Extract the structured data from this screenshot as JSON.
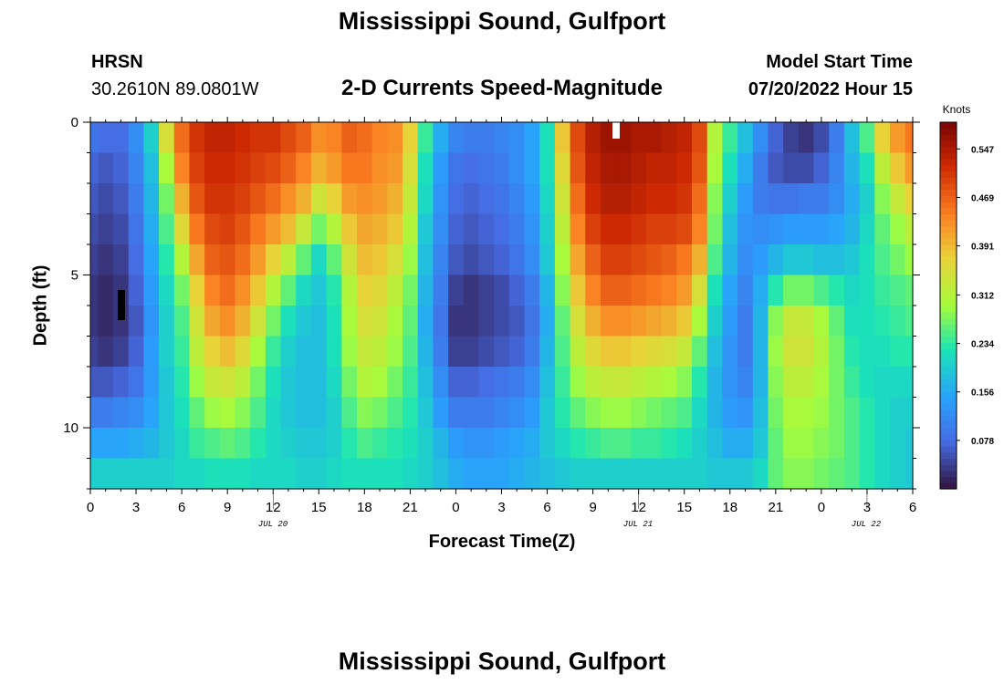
{
  "header": {
    "title": "Mississippi Sound, Gulfport",
    "station_code": "HRSN",
    "coordinates": "30.2610N  89.0801W",
    "subtitle": "2-D Currents Speed-Magnitude",
    "model_label": "Model Start Time",
    "model_time": "07/20/2022 Hour 15"
  },
  "footer": {
    "title": "Mississippi Sound, Gulfport"
  },
  "chart_data": {
    "type": "heatmap",
    "title": "2-D Currents Speed-Magnitude",
    "xlabel": "Forecast Time(Z)",
    "ylabel": "Depth (ft)",
    "x_tick_labels": [
      "0",
      "3",
      "6",
      "9",
      "12",
      "15",
      "18",
      "21",
      "0",
      "3",
      "6",
      "9",
      "12",
      "15",
      "18",
      "21",
      "0",
      "3",
      "6"
    ],
    "x_date_labels": [
      "JUL 20",
      "JUL 21",
      "JUL 22"
    ],
    "x_range_hours": [
      0,
      54
    ],
    "y_tick_labels": [
      "0",
      "5",
      "10"
    ],
    "ylim": [
      0,
      12
    ],
    "y_inverted": true,
    "colorbar": {
      "label": "Knots",
      "ticks": [
        "0.547",
        "0.469",
        "0.391",
        "0.312",
        "0.234",
        "0.156",
        "0.078"
      ],
      "range": [
        0,
        0.59
      ],
      "colormap": "turbo"
    },
    "grid": {
      "hours": [
        0,
        1,
        2,
        3,
        4,
        5,
        6,
        7,
        8,
        9,
        10,
        11,
        12,
        13,
        14,
        15,
        16,
        17,
        18,
        19,
        20,
        21,
        22,
        23,
        24,
        25,
        26,
        27,
        28,
        29,
        30,
        31,
        32,
        33,
        34,
        35,
        36,
        37,
        38,
        39,
        40,
        41,
        42,
        43,
        44,
        45,
        46,
        47,
        48,
        49,
        50,
        51,
        52,
        53,
        54
      ],
      "depth_bins_ft": [
        0.5,
        1.5,
        2.5,
        3.5,
        4.5,
        5.5,
        6.5,
        7.5,
        8.5,
        9.5,
        10.5,
        11.5
      ],
      "speed_knots": [
        [
          0.09,
          0.08,
          0.08,
          0.12,
          0.2,
          0.35,
          0.46,
          0.51,
          0.53,
          0.53,
          0.52,
          0.51,
          0.51,
          0.49,
          0.47,
          0.43,
          0.44,
          0.47,
          0.46,
          0.44,
          0.43,
          0.37,
          0.24,
          0.16,
          0.11,
          0.1,
          0.1,
          0.11,
          0.12,
          0.15,
          0.22,
          0.38,
          0.49,
          0.54,
          0.56,
          0.56,
          0.55,
          0.55,
          0.54,
          0.53,
          0.49,
          0.31,
          0.24,
          0.18,
          0.12,
          0.07,
          0.04,
          0.03,
          0.05,
          0.1,
          0.18,
          0.25,
          0.37,
          0.42,
          0.45
        ],
        [
          0.07,
          0.06,
          0.07,
          0.11,
          0.18,
          0.3,
          0.44,
          0.5,
          0.52,
          0.52,
          0.51,
          0.5,
          0.49,
          0.47,
          0.44,
          0.4,
          0.42,
          0.45,
          0.45,
          0.43,
          0.42,
          0.35,
          0.22,
          0.14,
          0.09,
          0.08,
          0.09,
          0.1,
          0.12,
          0.15,
          0.22,
          0.36,
          0.48,
          0.53,
          0.55,
          0.55,
          0.54,
          0.53,
          0.53,
          0.52,
          0.48,
          0.3,
          0.22,
          0.16,
          0.1,
          0.06,
          0.05,
          0.05,
          0.07,
          0.11,
          0.17,
          0.22,
          0.32,
          0.38,
          0.42
        ],
        [
          0.06,
          0.05,
          0.06,
          0.1,
          0.17,
          0.27,
          0.4,
          0.48,
          0.51,
          0.51,
          0.5,
          0.48,
          0.46,
          0.43,
          0.4,
          0.34,
          0.37,
          0.42,
          0.43,
          0.42,
          0.4,
          0.33,
          0.21,
          0.13,
          0.08,
          0.07,
          0.08,
          0.09,
          0.11,
          0.14,
          0.21,
          0.34,
          0.46,
          0.52,
          0.54,
          0.54,
          0.53,
          0.52,
          0.52,
          0.51,
          0.46,
          0.28,
          0.2,
          0.14,
          0.1,
          0.09,
          0.09,
          0.1,
          0.1,
          0.12,
          0.16,
          0.2,
          0.28,
          0.33,
          0.37
        ],
        [
          0.05,
          0.04,
          0.05,
          0.09,
          0.16,
          0.25,
          0.36,
          0.45,
          0.49,
          0.5,
          0.48,
          0.45,
          0.42,
          0.39,
          0.33,
          0.27,
          0.31,
          0.38,
          0.41,
          0.4,
          0.38,
          0.31,
          0.19,
          0.12,
          0.07,
          0.06,
          0.07,
          0.08,
          0.1,
          0.13,
          0.2,
          0.32,
          0.44,
          0.5,
          0.52,
          0.52,
          0.51,
          0.5,
          0.5,
          0.49,
          0.44,
          0.27,
          0.18,
          0.13,
          0.12,
          0.13,
          0.14,
          0.14,
          0.14,
          0.15,
          0.17,
          0.21,
          0.26,
          0.29,
          0.32
        ],
        [
          0.04,
          0.03,
          0.04,
          0.08,
          0.15,
          0.23,
          0.31,
          0.41,
          0.47,
          0.48,
          0.46,
          0.42,
          0.37,
          0.32,
          0.26,
          0.21,
          0.26,
          0.34,
          0.39,
          0.38,
          0.35,
          0.29,
          0.18,
          0.11,
          0.06,
          0.05,
          0.06,
          0.07,
          0.09,
          0.12,
          0.19,
          0.3,
          0.41,
          0.47,
          0.5,
          0.5,
          0.49,
          0.48,
          0.47,
          0.45,
          0.4,
          0.25,
          0.17,
          0.12,
          0.14,
          0.17,
          0.19,
          0.19,
          0.18,
          0.18,
          0.19,
          0.22,
          0.25,
          0.27,
          0.29
        ],
        [
          0.03,
          0.02,
          0.03,
          0.07,
          0.14,
          0.21,
          0.27,
          0.37,
          0.44,
          0.46,
          0.43,
          0.38,
          0.31,
          0.26,
          0.21,
          0.19,
          0.23,
          0.31,
          0.37,
          0.36,
          0.32,
          0.27,
          0.17,
          0.1,
          0.04,
          0.03,
          0.04,
          0.05,
          0.07,
          0.1,
          0.17,
          0.28,
          0.38,
          0.44,
          0.47,
          0.47,
          0.46,
          0.45,
          0.44,
          0.42,
          0.35,
          0.22,
          0.15,
          0.11,
          0.16,
          0.23,
          0.27,
          0.27,
          0.25,
          0.23,
          0.21,
          0.22,
          0.24,
          0.25,
          0.26
        ],
        [
          0.03,
          0.02,
          0.03,
          0.06,
          0.13,
          0.2,
          0.25,
          0.34,
          0.41,
          0.43,
          0.4,
          0.34,
          0.27,
          0.22,
          0.19,
          0.18,
          0.22,
          0.3,
          0.35,
          0.34,
          0.3,
          0.26,
          0.16,
          0.09,
          0.03,
          0.03,
          0.04,
          0.05,
          0.06,
          0.09,
          0.16,
          0.26,
          0.35,
          0.4,
          0.43,
          0.43,
          0.42,
          0.41,
          0.4,
          0.38,
          0.3,
          0.2,
          0.14,
          0.1,
          0.17,
          0.28,
          0.33,
          0.33,
          0.3,
          0.26,
          0.22,
          0.22,
          0.23,
          0.24,
          0.25
        ],
        [
          0.04,
          0.03,
          0.04,
          0.07,
          0.14,
          0.2,
          0.24,
          0.32,
          0.37,
          0.39,
          0.36,
          0.3,
          0.24,
          0.2,
          0.18,
          0.18,
          0.22,
          0.29,
          0.33,
          0.32,
          0.29,
          0.25,
          0.17,
          0.1,
          0.04,
          0.04,
          0.05,
          0.06,
          0.07,
          0.1,
          0.17,
          0.25,
          0.32,
          0.36,
          0.38,
          0.38,
          0.37,
          0.36,
          0.35,
          0.33,
          0.26,
          0.18,
          0.13,
          0.1,
          0.17,
          0.29,
          0.34,
          0.34,
          0.31,
          0.27,
          0.23,
          0.22,
          0.22,
          0.23,
          0.23
        ],
        [
          0.06,
          0.06,
          0.07,
          0.09,
          0.14,
          0.19,
          0.23,
          0.29,
          0.33,
          0.34,
          0.32,
          0.27,
          0.22,
          0.19,
          0.18,
          0.18,
          0.21,
          0.27,
          0.31,
          0.3,
          0.27,
          0.24,
          0.18,
          0.12,
          0.07,
          0.07,
          0.08,
          0.09,
          0.1,
          0.12,
          0.18,
          0.24,
          0.29,
          0.32,
          0.33,
          0.33,
          0.32,
          0.31,
          0.3,
          0.28,
          0.23,
          0.17,
          0.13,
          0.11,
          0.17,
          0.28,
          0.32,
          0.32,
          0.3,
          0.27,
          0.24,
          0.22,
          0.21,
          0.21,
          0.21
        ],
        [
          0.1,
          0.1,
          0.11,
          0.12,
          0.15,
          0.19,
          0.22,
          0.26,
          0.29,
          0.3,
          0.28,
          0.25,
          0.21,
          0.19,
          0.18,
          0.18,
          0.2,
          0.25,
          0.28,
          0.27,
          0.25,
          0.23,
          0.19,
          0.14,
          0.1,
          0.1,
          0.1,
          0.11,
          0.12,
          0.14,
          0.19,
          0.23,
          0.26,
          0.28,
          0.29,
          0.29,
          0.28,
          0.27,
          0.26,
          0.25,
          0.21,
          0.17,
          0.14,
          0.13,
          0.18,
          0.27,
          0.3,
          0.3,
          0.29,
          0.27,
          0.25,
          0.23,
          0.21,
          0.2,
          0.2
        ],
        [
          0.15,
          0.15,
          0.15,
          0.16,
          0.17,
          0.19,
          0.21,
          0.24,
          0.25,
          0.26,
          0.25,
          0.23,
          0.21,
          0.2,
          0.19,
          0.19,
          0.2,
          0.23,
          0.25,
          0.24,
          0.23,
          0.22,
          0.2,
          0.17,
          0.14,
          0.13,
          0.13,
          0.14,
          0.15,
          0.16,
          0.19,
          0.21,
          0.23,
          0.24,
          0.25,
          0.25,
          0.24,
          0.24,
          0.23,
          0.22,
          0.2,
          0.18,
          0.16,
          0.16,
          0.19,
          0.26,
          0.29,
          0.29,
          0.28,
          0.27,
          0.25,
          0.23,
          0.21,
          0.2,
          0.19
        ],
        [
          0.2,
          0.2,
          0.2,
          0.2,
          0.2,
          0.2,
          0.21,
          0.21,
          0.22,
          0.22,
          0.22,
          0.21,
          0.21,
          0.21,
          0.2,
          0.2,
          0.21,
          0.22,
          0.22,
          0.22,
          0.22,
          0.21,
          0.2,
          0.18,
          0.16,
          0.15,
          0.15,
          0.15,
          0.16,
          0.17,
          0.18,
          0.19,
          0.2,
          0.2,
          0.2,
          0.2,
          0.2,
          0.2,
          0.2,
          0.2,
          0.2,
          0.19,
          0.19,
          0.19,
          0.21,
          0.26,
          0.28,
          0.28,
          0.27,
          0.26,
          0.25,
          0.23,
          0.21,
          0.2,
          0.19
        ]
      ]
    }
  }
}
